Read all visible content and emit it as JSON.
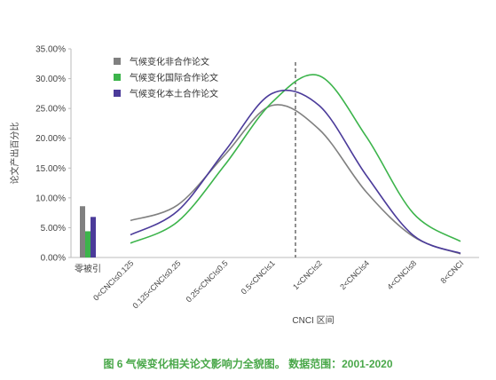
{
  "caption": "图 6  气候变化相关论文影响力全貌图。 数据范围：2001-2020",
  "chart_data": {
    "type": "line",
    "ylabel": "论文产出百分比",
    "xlabel": "CNCI 区间",
    "ylim": [
      0,
      35
    ],
    "yticks": [
      "0.00%",
      "5.00%",
      "10.00%",
      "15.00%",
      "20.00%",
      "25.00%",
      "30.00%",
      "35.00%"
    ],
    "categories": [
      "0<CNCI≤0.125",
      "0.125<CNCI≤0.25",
      "0.25<CNCI≤0.5",
      "0.5<CNCI≤1",
      "1<CNCI≤2",
      "2<CNCI≤4",
      "4<CNCI≤8",
      "8<CNCI"
    ],
    "zero_citation_label": "零被引",
    "reference_line_at": "1",
    "legend_position": "top-left",
    "grid": false,
    "series": [
      {
        "name": "气候变化非合作论文",
        "color": "#808080",
        "zero_citation": 8.6,
        "values": [
          6.2,
          8.8,
          17.2,
          25.5,
          21.5,
          11.0,
          3.5,
          0.6
        ]
      },
      {
        "name": "气候变化国际合作论文",
        "color": "#3cb44b",
        "zero_citation": 4.4,
        "values": [
          2.4,
          6.0,
          15.5,
          26.0,
          30.5,
          20.3,
          7.4,
          2.7
        ]
      },
      {
        "name": "气候变化本土合作论文",
        "color": "#4b3b9a",
        "zero_citation": 6.8,
        "values": [
          3.8,
          7.8,
          17.8,
          27.5,
          25.5,
          13.8,
          3.7,
          0.7
        ]
      }
    ]
  }
}
